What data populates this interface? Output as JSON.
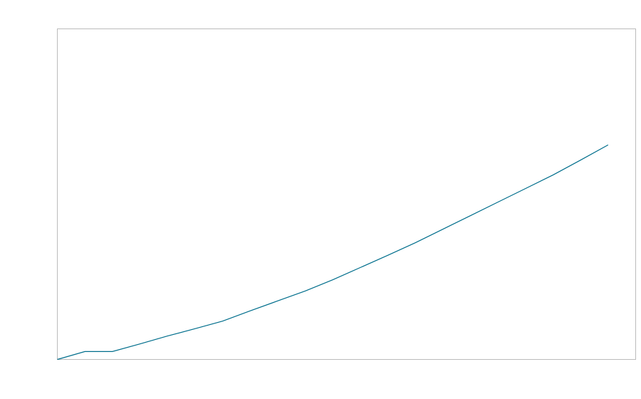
{
  "chart_data": {
    "type": "line",
    "title": "",
    "xlabel": "",
    "ylabel": "",
    "x": [
      0,
      1,
      2,
      3,
      4,
      5,
      6,
      7,
      8,
      9,
      10,
      11,
      12,
      13,
      14,
      15,
      16,
      17,
      18,
      19,
      20
    ],
    "series": [
      {
        "values": [
          0,
          2.4,
          2.4,
          4.7,
          7.1,
          9.3,
          11.6,
          14.7,
          17.7,
          20.7,
          24.1,
          27.8,
          31.5,
          35.3,
          39.4,
          43.5,
          47.6,
          51.7,
          55.8,
          60.3,
          64.9
        ],
        "color": "#006e8c"
      }
    ],
    "xlim": [
      0,
      21
    ],
    "ylim": [
      0,
      100
    ],
    "grid": false,
    "legend": "none",
    "frame_color": "#bbbbbb"
  }
}
